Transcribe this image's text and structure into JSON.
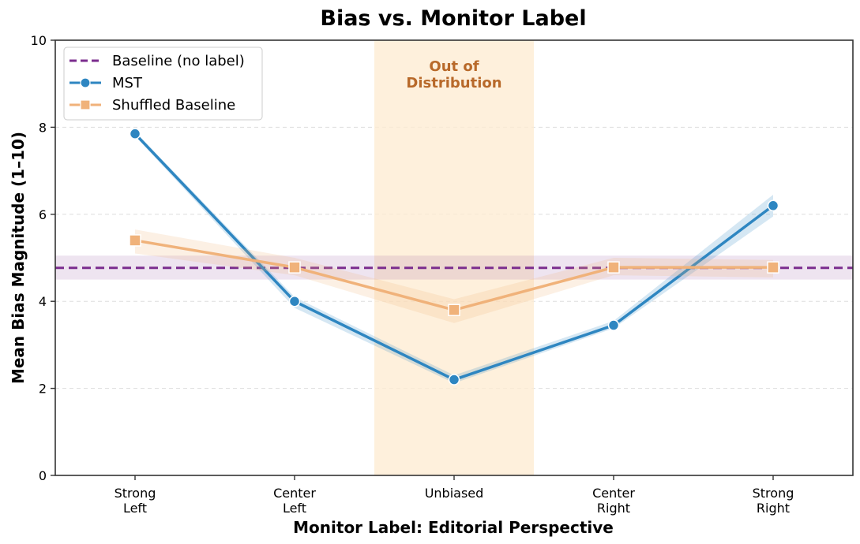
{
  "chart_data": {
    "type": "line",
    "title": "Bias vs. Monitor Label",
    "xlabel": "Monitor Label: Editorial Perspective",
    "ylabel": "Mean Bias Magnitude (1–10)",
    "categories": [
      [
        "Strong",
        "Left"
      ],
      [
        "Center",
        "Left"
      ],
      [
        "Unbiased"
      ],
      [
        "Center",
        "Right"
      ],
      [
        "Strong",
        "Right"
      ]
    ],
    "ylim": [
      0,
      10
    ],
    "yticks": [
      0,
      2,
      4,
      6,
      8,
      10
    ],
    "grid": true,
    "legend_position": "top-left",
    "baseline": {
      "name": "Baseline (no label)",
      "value": 4.77,
      "band": [
        4.5,
        5.05
      ],
      "color": "#7b2d8e"
    },
    "series": [
      {
        "name": "MST",
        "color": "#2e86c1",
        "marker": "circle",
        "values": [
          7.85,
          4.0,
          2.2,
          3.45,
          6.2
        ],
        "band_low": [
          7.8,
          3.85,
          2.12,
          3.38,
          5.95
        ],
        "band_high": [
          7.9,
          4.1,
          2.3,
          3.55,
          6.45
        ]
      },
      {
        "name": "Shuffled Baseline",
        "color": "#f0b27a",
        "marker": "square",
        "values": [
          5.4,
          4.78,
          3.8,
          4.78,
          4.78
        ],
        "band_low": [
          5.1,
          4.6,
          3.5,
          4.6,
          4.55
        ],
        "band_high": [
          5.65,
          5.0,
          4.05,
          5.0,
          4.95
        ]
      }
    ],
    "shaded_region": {
      "label": [
        "Out of",
        "Distribution"
      ],
      "x_range": [
        1.5,
        2.5
      ],
      "color": "#fdebd0"
    }
  }
}
